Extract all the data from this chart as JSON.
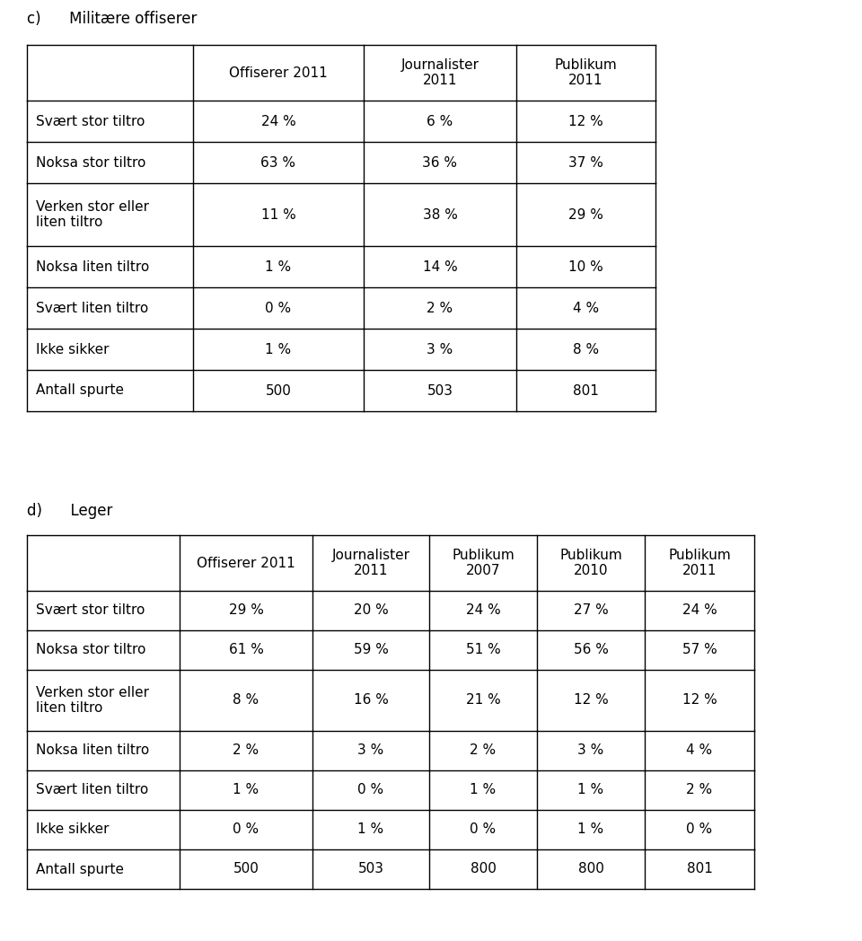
{
  "section_c_title": "c)      Militære offiserer",
  "section_c_headers": [
    "",
    "Offiserer 2011",
    "Journalister\n2011",
    "Publikum\n2011"
  ],
  "section_c_rows": [
    [
      "Svært stor tiltro",
      "24 %",
      "6 %",
      "12 %"
    ],
    [
      "Noksa stor tiltro",
      "63 %",
      "36 %",
      "37 %"
    ],
    [
      "Verken stor eller\nliten tiltro",
      "11 %",
      "38 %",
      "29 %"
    ],
    [
      "Noksa liten tiltro",
      "1 %",
      "14 %",
      "10 %"
    ],
    [
      "Svært liten tiltro",
      "0 %",
      "2 %",
      "4 %"
    ],
    [
      "Ikke sikker",
      "1 %",
      "3 %",
      "8 %"
    ],
    [
      "Antall spurte",
      "500",
      "503",
      "801"
    ]
  ],
  "section_d_title": "d)      Leger",
  "section_d_headers": [
    "",
    "Offiserer 2011",
    "Journalister\n2011",
    "Publikum\n2007",
    "Publikum\n2010",
    "Publikum\n2011"
  ],
  "section_d_rows": [
    [
      "Svært stor tiltro",
      "29 %",
      "20 %",
      "24 %",
      "27 %",
      "24 %"
    ],
    [
      "Noksa stor tiltro",
      "61 %",
      "59 %",
      "51 %",
      "56 %",
      "57 %"
    ],
    [
      "Verken stor eller\nliten tiltro",
      "8 %",
      "16 %",
      "21 %",
      "12 %",
      "12 %"
    ],
    [
      "Noksa liten tiltro",
      "2 %",
      "3 %",
      "2 %",
      "3 %",
      "4 %"
    ],
    [
      "Svært liten tiltro",
      "1 %",
      "0 %",
      "1 %",
      "1 %",
      "2 %"
    ],
    [
      "Ikke sikker",
      "0 %",
      "1 %",
      "0 %",
      "1 %",
      "0 %"
    ],
    [
      "Antall spurte",
      "500",
      "503",
      "800",
      "800",
      "801"
    ]
  ],
  "c_row_labels": [
    "Svært stor tiltro",
    "Noksa stor tiltro",
    "Verken stor eller\nliten tiltro",
    "Noksa liten tiltro",
    "Svært liten tiltro",
    "Ikke sikker",
    "Antall spurte"
  ],
  "d_row_labels": [
    "Svært stor tiltro",
    "Noksa stor tiltro",
    "Verken stor eller\nliten tiltro",
    "Noksa liten tiltro",
    "Svært liten tiltro",
    "Ikke sikker",
    "Antall spurte"
  ],
  "background_color": "#ffffff",
  "line_color": "#000000",
  "text_color": "#000000",
  "font_size": 11,
  "header_font_size": 11,
  "title_font_size": 12
}
